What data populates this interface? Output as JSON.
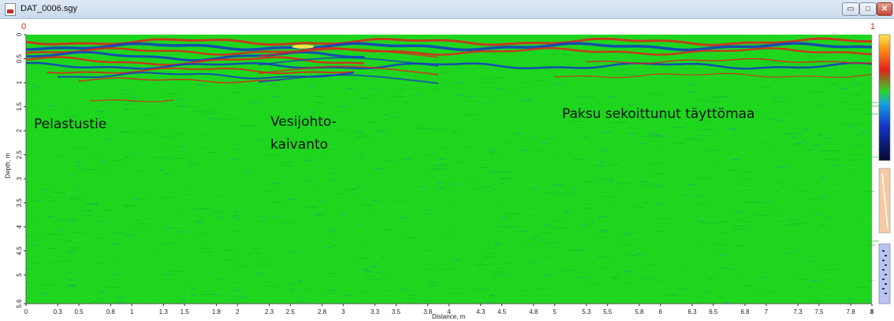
{
  "window": {
    "title": "DAT_0006.sgy",
    "range_start": "0",
    "range_end": "1",
    "min_symbol": "▭",
    "max_symbol": "□",
    "close_symbol": "✕"
  },
  "plot": {
    "xlabel": "Distance, m",
    "ylabel": "Depth, m",
    "x_ticks": [
      "0",
      "0.3",
      "0.5",
      "0.8",
      "1",
      "1.3",
      "1.5",
      "1.8",
      "2",
      "2.3",
      "2.5",
      "2.8",
      "3",
      "3.3",
      "3.5",
      "3.8",
      "4",
      "4.3",
      "4.5",
      "4.8",
      "5",
      "5.3",
      "5.5",
      "5.8",
      "6",
      "6.3",
      "6.5",
      "6.8",
      "7",
      "7.3",
      "7.5",
      "7.8",
      "8"
    ],
    "y_ticks": [
      "0",
      "0.5",
      "1",
      "1.5",
      "2",
      "2.5",
      "3",
      "3.5",
      "4",
      "4.5",
      "5",
      "5.6"
    ],
    "x_range": [
      0,
      8
    ],
    "y_range": [
      0,
      5.6
    ],
    "colors": {
      "background": "#1fd61f",
      "negative": "#1238c8",
      "positive": "#e0221a",
      "max": "#ffe94a"
    }
  },
  "annotations": {
    "pelastustie": "Pelastustie",
    "vesijohto_line1": "Vesijohto-",
    "vesijohto_line2": "kaivanto",
    "paksu": "Paksu sekoittunut täyttömaa"
  },
  "side_panel": {
    "colorbar_name": "amplitude-colorbar",
    "filter_icon_name": "gain-curve-icon",
    "velocity_icon_name": "velocity-panel-icon"
  }
}
